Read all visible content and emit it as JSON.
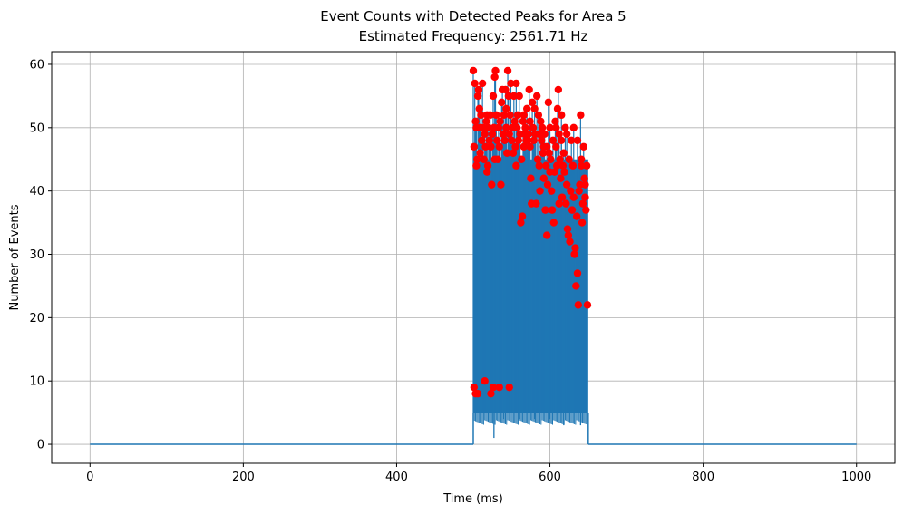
{
  "chart_data": {
    "type": "line",
    "title": "Event Counts with Detected Peaks for Area 5",
    "subtitle": "Estimated Frequency: 2561.71 Hz",
    "xlabel": "Time (ms)",
    "ylabel": "Number of Events",
    "xlim": [
      -50,
      1050
    ],
    "ylim": [
      -3,
      62
    ],
    "xticks": [
      0,
      200,
      400,
      600,
      800,
      1000
    ],
    "yticks": [
      0,
      10,
      20,
      30,
      40,
      50,
      60
    ],
    "grid": true,
    "active_window": [
      500,
      650
    ],
    "colors": {
      "line": "#1f77b4",
      "peaks": "#ff0000",
      "grid": "#b0b0b0"
    },
    "series": [
      {
        "kind": "line",
        "description": "event count signal",
        "points": [
          [
            0,
            0
          ],
          [
            499.5,
            0
          ],
          [
            500,
            5
          ],
          [
            500,
            59
          ],
          [
            650,
            59
          ],
          [
            650,
            0
          ],
          [
            1000,
            0
          ]
        ],
        "band": {
          "x_start": 500,
          "x_end": 650,
          "low": 5,
          "high": 59,
          "min_dips": [
            [
              527,
              1
            ],
            [
              540,
              4
            ],
            [
              560,
              4
            ],
            [
              580,
              4
            ],
            [
              600,
              4
            ],
            [
              618,
              3
            ],
            [
              640,
              3
            ]
          ]
        }
      },
      {
        "kind": "scatter",
        "description": "detected peaks",
        "points": [
          [
            500,
            59
          ],
          [
            501,
            47
          ],
          [
            502,
            57
          ],
          [
            503,
            51
          ],
          [
            504,
            44
          ],
          [
            505,
            45
          ],
          [
            506,
            55
          ],
          [
            507,
            56
          ],
          [
            508,
            53
          ],
          [
            509,
            50
          ],
          [
            510,
            52
          ],
          [
            511,
            48
          ],
          [
            512,
            57
          ],
          [
            513,
            50
          ],
          [
            514,
            45
          ],
          [
            515,
            49
          ],
          [
            516,
            47
          ],
          [
            517,
            51
          ],
          [
            518,
            43
          ],
          [
            519,
            44
          ],
          [
            520,
            50
          ],
          [
            521,
            48
          ],
          [
            522,
            52
          ],
          [
            523,
            47
          ],
          [
            524,
            41
          ],
          [
            525,
            49
          ],
          [
            526,
            55
          ],
          [
            527,
            50
          ],
          [
            528,
            58
          ],
          [
            529,
            59
          ],
          [
            530,
            52
          ],
          [
            531,
            48
          ],
          [
            532,
            45
          ],
          [
            533,
            50
          ],
          [
            534,
            47
          ],
          [
            535,
            51
          ],
          [
            536,
            41
          ],
          [
            537,
            54
          ],
          [
            538,
            56
          ],
          [
            539,
            49
          ],
          [
            540,
            52
          ],
          [
            541,
            48
          ],
          [
            542,
            56
          ],
          [
            543,
            50
          ],
          [
            544,
            46
          ],
          [
            545,
            59
          ],
          [
            546,
            55
          ],
          [
            547,
            49
          ],
          [
            548,
            52
          ],
          [
            549,
            57
          ],
          [
            550,
            48
          ],
          [
            551,
            50
          ],
          [
            552,
            46
          ],
          [
            553,
            55
          ],
          [
            554,
            51
          ],
          [
            555,
            47
          ],
          [
            556,
            57
          ],
          [
            557,
            50
          ],
          [
            558,
            52
          ],
          [
            559,
            48
          ],
          [
            560,
            55
          ],
          [
            561,
            49
          ],
          [
            562,
            35
          ],
          [
            563,
            45
          ],
          [
            564,
            36
          ],
          [
            565,
            51
          ],
          [
            566,
            47
          ],
          [
            567,
            49
          ],
          [
            568,
            50
          ],
          [
            569,
            48
          ],
          [
            570,
            53
          ],
          [
            571,
            48
          ],
          [
            572,
            49
          ],
          [
            573,
            56
          ],
          [
            574,
            47
          ],
          [
            575,
            42
          ],
          [
            576,
            38
          ],
          [
            577,
            54
          ],
          [
            578,
            50
          ],
          [
            579,
            48
          ],
          [
            580,
            53
          ],
          [
            581,
            49
          ],
          [
            582,
            38
          ],
          [
            583,
            55
          ],
          [
            584,
            45
          ],
          [
            585,
            52
          ],
          [
            586,
            44
          ],
          [
            587,
            40
          ],
          [
            588,
            51
          ],
          [
            589,
            48
          ],
          [
            590,
            50
          ],
          [
            591,
            46
          ],
          [
            592,
            42
          ],
          [
            593,
            49
          ],
          [
            594,
            37
          ],
          [
            595,
            44
          ],
          [
            596,
            33
          ],
          [
            597,
            41
          ],
          [
            598,
            54
          ],
          [
            599,
            46
          ],
          [
            600,
            50
          ],
          [
            601,
            45
          ],
          [
            602,
            40
          ],
          [
            603,
            37
          ],
          [
            604,
            48
          ],
          [
            605,
            35
          ],
          [
            606,
            43
          ],
          [
            607,
            51
          ],
          [
            608,
            47
          ],
          [
            609,
            44
          ],
          [
            610,
            53
          ],
          [
            611,
            56
          ],
          [
            612,
            49
          ],
          [
            613,
            45
          ],
          [
            614,
            42
          ],
          [
            615,
            48
          ],
          [
            616,
            39
          ],
          [
            617,
            44
          ],
          [
            618,
            46
          ],
          [
            619,
            43
          ],
          [
            620,
            50
          ],
          [
            621,
            38
          ],
          [
            622,
            41
          ],
          [
            623,
            34
          ],
          [
            624,
            33
          ],
          [
            625,
            45
          ],
          [
            626,
            32
          ],
          [
            627,
            40
          ],
          [
            628,
            48
          ],
          [
            629,
            37
          ],
          [
            630,
            44
          ],
          [
            631,
            39
          ],
          [
            632,
            30
          ],
          [
            633,
            31
          ],
          [
            634,
            25
          ],
          [
            635,
            36
          ],
          [
            636,
            27
          ],
          [
            637,
            22
          ],
          [
            638,
            40
          ],
          [
            639,
            41
          ],
          [
            640,
            52
          ],
          [
            641,
            44
          ],
          [
            642,
            35
          ],
          [
            643,
            38
          ],
          [
            644,
            47
          ],
          [
            645,
            42
          ],
          [
            646,
            39
          ],
          [
            647,
            37
          ],
          [
            648,
            44
          ],
          [
            649,
            22
          ],
          [
            501,
            9
          ],
          [
            503,
            8
          ],
          [
            506,
            8
          ],
          [
            515,
            10
          ],
          [
            523,
            8
          ],
          [
            526,
            9
          ],
          [
            534,
            9
          ],
          [
            547,
            9
          ],
          [
            504,
            50
          ],
          [
            509,
            46
          ],
          [
            518,
            52
          ],
          [
            528,
            45
          ],
          [
            543,
            53
          ],
          [
            556,
            44
          ],
          [
            566,
            52
          ],
          [
            586,
            49
          ],
          [
            596,
            47
          ],
          [
            608,
            50
          ],
          [
            615,
            52
          ],
          [
            622,
            49
          ],
          [
            631,
            50
          ],
          [
            636,
            48
          ],
          [
            641,
            45
          ],
          [
            646,
            41
          ],
          [
            612,
            38
          ],
          [
            600,
            43
          ],
          [
            592,
            47
          ],
          [
            574,
            51
          ]
        ]
      }
    ]
  }
}
